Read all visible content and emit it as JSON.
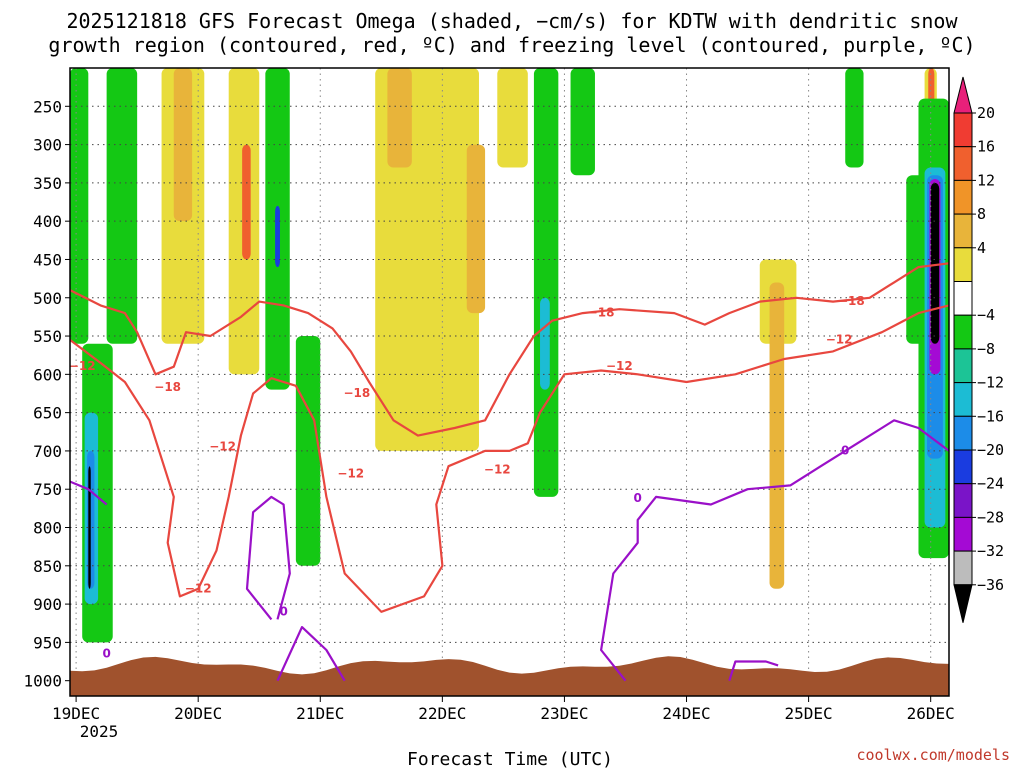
{
  "chart_data": {
    "type": "heatmap",
    "title_lines": [
      "2025121818 GFS Forecast Omega (shaded, −cm/s) for KDTW with dendritic snow",
      "growth region (contoured, red, ºC) and freezing level (contoured, purple, ºC)"
    ],
    "xlabel": "Forecast Time (UTC)",
    "credit": "coolwx.com/models",
    "x_ticks": [
      "19DEC",
      "20DEC",
      "21DEC",
      "22DEC",
      "23DEC",
      "24DEC",
      "25DEC",
      "26DEC"
    ],
    "x_year_label": "2025",
    "x_range_days": [
      18.95,
      26.15
    ],
    "y_ticks": [
      "250",
      "300",
      "350",
      "400",
      "450",
      "500",
      "550",
      "600",
      "650",
      "700",
      "750",
      "800",
      "850",
      "900",
      "950",
      "1000"
    ],
    "y_range_hpa": [
      200,
      1020
    ],
    "grid": true,
    "colorbar": {
      "labels": [
        "20",
        "16",
        "12",
        "8",
        "4",
        "−4",
        "−8",
        "−12",
        "−16",
        "−20",
        "−24",
        "−28",
        "−32",
        "−36"
      ],
      "colors": [
        "#e8207a",
        "#f03c32",
        "#f0602e",
        "#f09428",
        "#e8b43a",
        "#e8dc3c",
        "#ffffff",
        "#14c814",
        "#1cc496",
        "#1cbcd4",
        "#1c8ce8",
        "#1a3ce0",
        "#7a14c8",
        "#a40ad4",
        "#bcbcbc",
        "#000000"
      ],
      "placement": "right"
    },
    "omega_regions": [
      {
        "value": 6,
        "color": "#e8dc3c",
        "t0": 19.7,
        "t1": 20.05,
        "p0": 200,
        "p1": 560
      },
      {
        "value": 10,
        "color": "#e8b43a",
        "t0": 19.8,
        "t1": 19.95,
        "p0": 200,
        "p1": 400
      },
      {
        "value": 6,
        "color": "#e8dc3c",
        "t0": 20.25,
        "t1": 20.5,
        "p0": 200,
        "p1": 600
      },
      {
        "value": 14,
        "color": "#f0602e",
        "t0": 20.36,
        "t1": 20.43,
        "p0": 300,
        "p1": 450
      },
      {
        "value": 6,
        "color": "#e8dc3c",
        "t0": 21.45,
        "t1": 22.3,
        "p0": 200,
        "p1": 700
      },
      {
        "value": 10,
        "color": "#e8b43a",
        "t0": 21.55,
        "t1": 21.75,
        "p0": 200,
        "p1": 330
      },
      {
        "value": 10,
        "color": "#e8b43a",
        "t0": 22.2,
        "t1": 22.35,
        "p0": 300,
        "p1": 520
      },
      {
        "value": 6,
        "color": "#e8dc3c",
        "t0": 22.45,
        "t1": 22.7,
        "p0": 200,
        "p1": 330
      },
      {
        "value": 6,
        "color": "#e8dc3c",
        "t0": 24.6,
        "t1": 24.9,
        "p0": 450,
        "p1": 560
      },
      {
        "value": 10,
        "color": "#e8b43a",
        "t0": 24.68,
        "t1": 24.8,
        "p0": 480,
        "p1": 880
      },
      {
        "value": 6,
        "color": "#e8dc3c",
        "t0": 25.95,
        "t1": 26.05,
        "p0": 200,
        "p1": 350
      },
      {
        "value": 14,
        "color": "#f0602e",
        "t0": 25.98,
        "t1": 26.03,
        "p0": 200,
        "p1": 320
      },
      {
        "value": -6,
        "color": "#14c814",
        "t0": 18.95,
        "t1": 19.1,
        "p0": 200,
        "p1": 560
      },
      {
        "value": -6,
        "color": "#14c814",
        "t0": 19.05,
        "t1": 19.3,
        "p0": 560,
        "p1": 950
      },
      {
        "value": -14,
        "color": "#1cbcd4",
        "t0": 19.07,
        "t1": 19.18,
        "p0": 650,
        "p1": 900
      },
      {
        "value": -20,
        "color": "#1c8ce8",
        "t0": 19.09,
        "t1": 19.15,
        "p0": 700,
        "p1": 880
      },
      {
        "value": -36,
        "color": "#000000",
        "t0": 19.1,
        "t1": 19.12,
        "p0": 720,
        "p1": 880
      },
      {
        "value": -6,
        "color": "#14c814",
        "t0": 19.25,
        "t1": 19.5,
        "p0": 200,
        "p1": 560
      },
      {
        "value": -6,
        "color": "#14c814",
        "t0": 20.55,
        "t1": 20.75,
        "p0": 200,
        "p1": 620
      },
      {
        "value": -22,
        "color": "#1a3ce0",
        "t0": 20.63,
        "t1": 20.67,
        "p0": 380,
        "p1": 460
      },
      {
        "value": -6,
        "color": "#14c814",
        "t0": 20.8,
        "t1": 21.0,
        "p0": 550,
        "p1": 850
      },
      {
        "value": -6,
        "color": "#14c814",
        "t0": 22.75,
        "t1": 22.95,
        "p0": 200,
        "p1": 760
      },
      {
        "value": -14,
        "color": "#1cbcd4",
        "t0": 22.8,
        "t1": 22.88,
        "p0": 500,
        "p1": 620
      },
      {
        "value": -6,
        "color": "#14c814",
        "t0": 23.05,
        "t1": 23.25,
        "p0": 200,
        "p1": 340
      },
      {
        "value": -6,
        "color": "#14c814",
        "t0": 25.3,
        "t1": 25.45,
        "p0": 200,
        "p1": 330
      },
      {
        "value": -6,
        "color": "#14c814",
        "t0": 25.8,
        "t1": 25.95,
        "p0": 340,
        "p1": 560
      },
      {
        "value": -6,
        "color": "#14c814",
        "t0": 25.9,
        "t1": 26.15,
        "p0": 240,
        "p1": 840
      },
      {
        "value": -14,
        "color": "#1cbcd4",
        "t0": 25.95,
        "t1": 26.12,
        "p0": 330,
        "p1": 800
      },
      {
        "value": -20,
        "color": "#1c8ce8",
        "t0": 25.97,
        "t1": 26.1,
        "p0": 340,
        "p1": 710
      },
      {
        "value": -30,
        "color": "#a40ad4",
        "t0": 25.99,
        "t1": 26.08,
        "p0": 345,
        "p1": 600
      },
      {
        "value": -36,
        "color": "#000000",
        "t0": 26.0,
        "t1": 26.07,
        "p0": 350,
        "p1": 560
      }
    ],
    "contours": [
      {
        "level": -12,
        "color": "#e8473f",
        "label": "−12",
        "points": [
          [
            18.95,
            555
          ],
          [
            19.2,
            585
          ],
          [
            19.4,
            610
          ],
          [
            19.6,
            660
          ],
          [
            19.8,
            760
          ],
          [
            19.75,
            820
          ],
          [
            19.85,
            890
          ],
          [
            20.0,
            880
          ],
          [
            20.15,
            830
          ],
          [
            20.25,
            760
          ],
          [
            20.35,
            680
          ],
          [
            20.45,
            625
          ],
          [
            20.6,
            605
          ],
          [
            20.8,
            615
          ],
          [
            20.95,
            660
          ],
          [
            21.05,
            760
          ],
          [
            21.2,
            860
          ],
          [
            21.5,
            910
          ],
          [
            21.85,
            890
          ],
          [
            22.0,
            850
          ],
          [
            21.95,
            770
          ],
          [
            22.05,
            720
          ],
          [
            22.35,
            700
          ],
          [
            22.55,
            700
          ],
          [
            22.7,
            690
          ],
          [
            22.8,
            650
          ],
          [
            23.0,
            600
          ],
          [
            23.3,
            595
          ],
          [
            23.6,
            600
          ],
          [
            24.0,
            610
          ],
          [
            24.4,
            600
          ],
          [
            24.8,
            580
          ],
          [
            25.2,
            570
          ],
          [
            25.6,
            545
          ],
          [
            25.9,
            520
          ],
          [
            26.15,
            510
          ]
        ]
      },
      {
        "level": -18,
        "color": "#e8473f",
        "label": "−18",
        "points": [
          [
            18.95,
            490
          ],
          [
            19.2,
            510
          ],
          [
            19.4,
            520
          ],
          [
            19.5,
            545
          ],
          [
            19.65,
            600
          ],
          [
            19.8,
            590
          ],
          [
            19.9,
            545
          ],
          [
            20.1,
            550
          ],
          [
            20.35,
            525
          ],
          [
            20.5,
            505
          ],
          [
            20.7,
            510
          ],
          [
            20.9,
            520
          ],
          [
            21.1,
            540
          ],
          [
            21.25,
            570
          ],
          [
            21.4,
            610
          ],
          [
            21.6,
            660
          ],
          [
            21.8,
            680
          ],
          [
            22.1,
            670
          ],
          [
            22.35,
            660
          ],
          [
            22.55,
            600
          ],
          [
            22.75,
            550
          ],
          [
            22.9,
            530
          ],
          [
            23.15,
            520
          ],
          [
            23.45,
            515
          ],
          [
            23.9,
            520
          ],
          [
            24.15,
            535
          ],
          [
            24.35,
            520
          ],
          [
            24.6,
            505
          ],
          [
            24.9,
            500
          ],
          [
            25.2,
            505
          ],
          [
            25.5,
            500
          ],
          [
            25.7,
            480
          ],
          [
            25.9,
            460
          ],
          [
            26.15,
            455
          ]
        ]
      },
      {
        "level": 0,
        "color": "#9a10c8",
        "label": "0",
        "points": [
          [
            18.95,
            740
          ],
          [
            19.1,
            750
          ],
          [
            19.25,
            770
          ]
        ]
      },
      {
        "level": 0,
        "color": "#9a10c8",
        "label": "0",
        "points": [
          [
            20.6,
            920
          ],
          [
            20.4,
            880
          ],
          [
            20.45,
            780
          ],
          [
            20.6,
            760
          ],
          [
            20.7,
            770
          ],
          [
            20.75,
            860
          ],
          [
            20.65,
            920
          ]
        ]
      },
      {
        "level": 0,
        "color": "#9a10c8",
        "label": "0",
        "points": [
          [
            20.65,
            1000
          ],
          [
            20.85,
            930
          ],
          [
            21.05,
            960
          ],
          [
            21.2,
            1000
          ]
        ]
      },
      {
        "level": 0,
        "color": "#9a10c8",
        "label": "0",
        "points": [
          [
            23.5,
            1000
          ],
          [
            23.3,
            960
          ],
          [
            23.4,
            860
          ],
          [
            23.6,
            820
          ],
          [
            23.6,
            790
          ],
          [
            23.75,
            760
          ],
          [
            24.2,
            770
          ],
          [
            24.5,
            750
          ],
          [
            24.85,
            745
          ],
          [
            25.1,
            720
          ],
          [
            25.4,
            690
          ],
          [
            25.7,
            660
          ],
          [
            25.9,
            670
          ],
          [
            26.15,
            700
          ]
        ]
      },
      {
        "level": 0,
        "color": "#9a10c8",
        "label": "0",
        "points": [
          [
            24.35,
            1000
          ],
          [
            24.4,
            975
          ],
          [
            24.65,
            975
          ],
          [
            24.75,
            980
          ]
        ]
      }
    ],
    "contour_labels": [
      {
        "text": "−12",
        "class": "red",
        "t": 19.05,
        "p": 590
      },
      {
        "text": "−18",
        "class": "red",
        "t": 19.75,
        "p": 617
      },
      {
        "text": "−12",
        "class": "red",
        "t": 20.2,
        "p": 695
      },
      {
        "text": "−12",
        "class": "red",
        "t": 20.0,
        "p": 880
      },
      {
        "text": "−12",
        "class": "red",
        "t": 21.25,
        "p": 730
      },
      {
        "text": "−18",
        "class": "red",
        "t": 21.3,
        "p": 625
      },
      {
        "text": "−12",
        "class": "red",
        "t": 22.45,
        "p": 725
      },
      {
        "text": "−18",
        "class": "red",
        "t": 23.3,
        "p": 520
      },
      {
        "text": "−12",
        "class": "red",
        "t": 23.45,
        "p": 590
      },
      {
        "text": "−12",
        "class": "red",
        "t": 25.25,
        "p": 555
      },
      {
        "text": "−18",
        "class": "red",
        "t": 25.35,
        "p": 505
      },
      {
        "text": "0",
        "class": "purple",
        "t": 19.25,
        "p": 965
      },
      {
        "text": "0",
        "class": "purple",
        "t": 20.7,
        "p": 910
      },
      {
        "text": "0",
        "class": "purple",
        "t": 23.6,
        "p": 762
      },
      {
        "text": "0",
        "class": "purple",
        "t": 25.3,
        "p": 700
      }
    ]
  }
}
